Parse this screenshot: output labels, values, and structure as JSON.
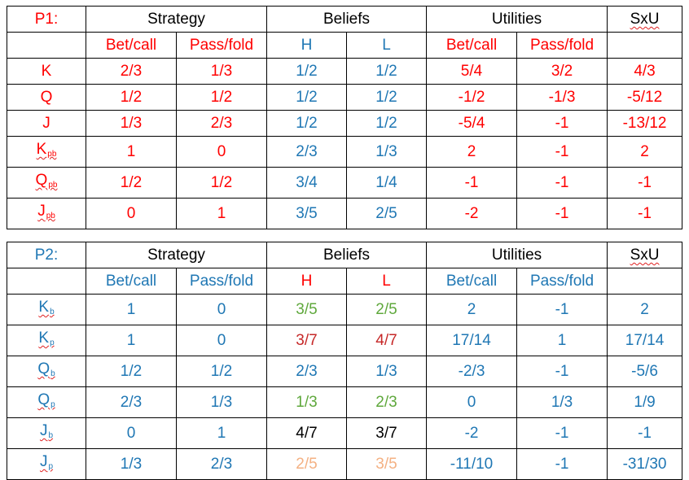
{
  "colors": {
    "red": "#ff0000",
    "blue": "#1f77b4",
    "black": "#000000",
    "green": "#5fa83c",
    "dark_red": "#c62828",
    "peach": "#f4b183"
  },
  "tables": [
    {
      "player": "P1:",
      "player_color": "red",
      "headers": {
        "strategy": "Strategy",
        "beliefs": "Beliefs",
        "utilities": "Utilities",
        "sxu": "SxU"
      },
      "subheaders": [
        {
          "text": "Bet/call",
          "color": "red"
        },
        {
          "text": "Pass/fold",
          "color": "red"
        },
        {
          "text": "H",
          "color": "blue"
        },
        {
          "text": "L",
          "color": "blue"
        },
        {
          "text": "Bet/call",
          "color": "red"
        },
        {
          "text": "Pass/fold",
          "color": "red"
        }
      ],
      "rows": [
        {
          "label": "K",
          "sub": "",
          "label_color": "red",
          "cells": [
            {
              "v": "2/3",
              "c": "red"
            },
            {
              "v": "1/3",
              "c": "red"
            },
            {
              "v": "1/2",
              "c": "blue"
            },
            {
              "v": "1/2",
              "c": "blue"
            },
            {
              "v": "5/4",
              "c": "red"
            },
            {
              "v": "3/2",
              "c": "red"
            },
            {
              "v": "4/3",
              "c": "red"
            }
          ]
        },
        {
          "label": "Q",
          "sub": "",
          "label_color": "red",
          "cells": [
            {
              "v": "1/2",
              "c": "red"
            },
            {
              "v": "1/2",
              "c": "red"
            },
            {
              "v": "1/2",
              "c": "blue"
            },
            {
              "v": "1/2",
              "c": "blue"
            },
            {
              "v": "-1/2",
              "c": "red"
            },
            {
              "v": "-1/3",
              "c": "red"
            },
            {
              "v": "-5/12",
              "c": "red"
            }
          ]
        },
        {
          "label": "J",
          "sub": "",
          "label_color": "red",
          "cells": [
            {
              "v": "1/3",
              "c": "red"
            },
            {
              "v": "2/3",
              "c": "red"
            },
            {
              "v": "1/2",
              "c": "blue"
            },
            {
              "v": "1/2",
              "c": "blue"
            },
            {
              "v": "-5/4",
              "c": "red"
            },
            {
              "v": "-1",
              "c": "red"
            },
            {
              "v": "-13/12",
              "c": "red"
            }
          ]
        },
        {
          "label": "K",
          "sub": "pb",
          "label_color": "red",
          "cells": [
            {
              "v": "1",
              "c": "red"
            },
            {
              "v": "0",
              "c": "red"
            },
            {
              "v": "2/3",
              "c": "blue"
            },
            {
              "v": "1/3",
              "c": "blue"
            },
            {
              "v": "2",
              "c": "red"
            },
            {
              "v": "-1",
              "c": "red"
            },
            {
              "v": "2",
              "c": "red"
            }
          ]
        },
        {
          "label": "Q",
          "sub": "pb",
          "label_color": "red",
          "cells": [
            {
              "v": "1/2",
              "c": "red"
            },
            {
              "v": "1/2",
              "c": "red"
            },
            {
              "v": "3/4",
              "c": "blue"
            },
            {
              "v": "1/4",
              "c": "blue"
            },
            {
              "v": "-1",
              "c": "red"
            },
            {
              "v": "-1",
              "c": "red"
            },
            {
              "v": "-1",
              "c": "red"
            }
          ]
        },
        {
          "label": "J",
          "sub": "pb",
          "label_color": "red",
          "cells": [
            {
              "v": "0",
              "c": "red"
            },
            {
              "v": "1",
              "c": "red"
            },
            {
              "v": "3/5",
              "c": "blue"
            },
            {
              "v": "2/5",
              "c": "blue"
            },
            {
              "v": "-2",
              "c": "red"
            },
            {
              "v": "-1",
              "c": "red"
            },
            {
              "v": "-1",
              "c": "red"
            }
          ]
        }
      ]
    },
    {
      "player": "P2:",
      "player_color": "blue",
      "headers": {
        "strategy": "Strategy",
        "beliefs": "Beliefs",
        "utilities": "Utilities",
        "sxu": "SxU"
      },
      "subheaders": [
        {
          "text": "Bet/call",
          "color": "blue"
        },
        {
          "text": "Pass/fold",
          "color": "blue"
        },
        {
          "text": "H",
          "color": "red"
        },
        {
          "text": "L",
          "color": "red"
        },
        {
          "text": "Bet/call",
          "color": "blue"
        },
        {
          "text": "Pass/fold",
          "color": "blue"
        }
      ],
      "rows": [
        {
          "label": "K",
          "sub": "b",
          "label_color": "blue",
          "cells": [
            {
              "v": "1",
              "c": "blue"
            },
            {
              "v": "0",
              "c": "blue"
            },
            {
              "v": "3/5",
              "c": "green"
            },
            {
              "v": "2/5",
              "c": "green"
            },
            {
              "v": "2",
              "c": "blue"
            },
            {
              "v": "-1",
              "c": "blue"
            },
            {
              "v": "2",
              "c": "blue"
            }
          ]
        },
        {
          "label": "K",
          "sub": "p",
          "label_color": "blue",
          "cells": [
            {
              "v": "1",
              "c": "blue"
            },
            {
              "v": "0",
              "c": "blue"
            },
            {
              "v": "3/7",
              "c": "dred"
            },
            {
              "v": "4/7",
              "c": "dred"
            },
            {
              "v": "17/14",
              "c": "blue"
            },
            {
              "v": "1",
              "c": "blue"
            },
            {
              "v": "17/14",
              "c": "blue"
            }
          ]
        },
        {
          "label": "Q",
          "sub": "b",
          "label_color": "blue",
          "cells": [
            {
              "v": "1/2",
              "c": "blue"
            },
            {
              "v": "1/2",
              "c": "blue"
            },
            {
              "v": "2/3",
              "c": "blue"
            },
            {
              "v": "1/3",
              "c": "blue"
            },
            {
              "v": "-2/3",
              "c": "blue"
            },
            {
              "v": "-1",
              "c": "blue"
            },
            {
              "v": "-5/6",
              "c": "blue"
            }
          ]
        },
        {
          "label": "Q",
          "sub": "p",
          "label_color": "blue",
          "cells": [
            {
              "v": "2/3",
              "c": "blue"
            },
            {
              "v": "1/3",
              "c": "blue"
            },
            {
              "v": "1/3",
              "c": "green"
            },
            {
              "v": "2/3",
              "c": "green"
            },
            {
              "v": "0",
              "c": "blue"
            },
            {
              "v": "1/3",
              "c": "blue"
            },
            {
              "v": "1/9",
              "c": "blue"
            }
          ]
        },
        {
          "label": "J",
          "sub": "b",
          "label_color": "blue",
          "cells": [
            {
              "v": "0",
              "c": "blue"
            },
            {
              "v": "1",
              "c": "blue"
            },
            {
              "v": "4/7",
              "c": "black"
            },
            {
              "v": "3/7",
              "c": "black"
            },
            {
              "v": "-2",
              "c": "blue"
            },
            {
              "v": "-1",
              "c": "blue"
            },
            {
              "v": "-1",
              "c": "blue"
            }
          ]
        },
        {
          "label": "J",
          "sub": "p",
          "label_color": "blue",
          "cells": [
            {
              "v": "1/3",
              "c": "blue"
            },
            {
              "v": "2/3",
              "c": "blue"
            },
            {
              "v": "2/5",
              "c": "peach"
            },
            {
              "v": "3/5",
              "c": "peach"
            },
            {
              "v": "-11/10",
              "c": "blue"
            },
            {
              "v": "-1",
              "c": "blue"
            },
            {
              "v": "-31/30",
              "c": "blue"
            }
          ]
        }
      ]
    }
  ]
}
